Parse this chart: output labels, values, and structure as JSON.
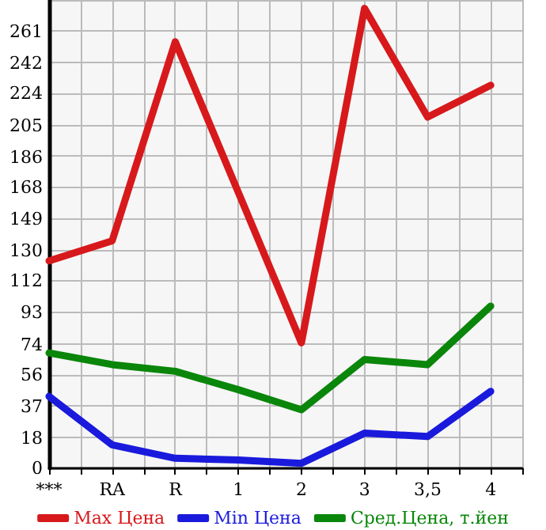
{
  "chart_data": {
    "type": "line",
    "categories": [
      "***",
      "RA",
      "R",
      "1",
      "2",
      "3",
      "3,5",
      "4"
    ],
    "series": [
      {
        "name": "Max Цена",
        "color": "#d7191c",
        "values": [
          124,
          136,
          255,
          165,
          75,
          275,
          210,
          229
        ]
      },
      {
        "name": "Min Цена",
        "color": "#1a1adc",
        "values": [
          43,
          14,
          6,
          5,
          3,
          21,
          19,
          46
        ]
      },
      {
        "name": "Сред.Цена, т.йен",
        "color": "#0a860a",
        "values": [
          69,
          62,
          58,
          47,
          35,
          65,
          62,
          97
        ]
      }
    ],
    "ylim": [
      0,
      280
    ],
    "yticks": [
      0,
      18,
      37,
      56,
      74,
      93,
      112,
      130,
      149,
      168,
      186,
      205,
      224,
      242,
      261
    ],
    "grid": true,
    "legend": "bottom",
    "marker": "none",
    "line_style": "solid"
  }
}
